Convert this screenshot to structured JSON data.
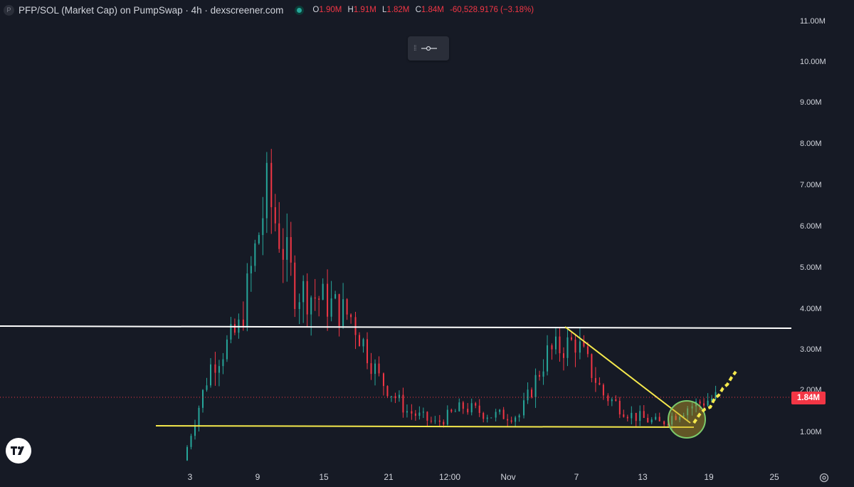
{
  "header": {
    "symbol_title": "PFP/SOL (Market Cap) on PumpSwap · 4h · dexscreener.com",
    "logo_letter": "P",
    "ohlc": {
      "open_key": "O",
      "open": "1.90M",
      "high_key": "H",
      "high": "1.91M",
      "low_key": "L",
      "low": "1.82M",
      "close_key": "C",
      "close": "1.84M",
      "change": "-60,528.9176 (−3.18%)"
    }
  },
  "price_axis": {
    "labels": [
      "11.00M",
      "10.00M",
      "9.00M",
      "8.00M",
      "7.00M",
      "6.00M",
      "5.00M",
      "4.00M",
      "3.00M",
      "2.00M",
      "1.00M"
    ],
    "current_price": "1.84M"
  },
  "time_axis": {
    "labels": [
      "3",
      "9",
      "15",
      "21",
      "12:00",
      "Nov",
      "7",
      "13",
      "19",
      "25"
    ]
  },
  "colors": {
    "background": "#161a25",
    "up": "#26a69a",
    "down": "#f23645",
    "support_line": "#f5e94c",
    "resistance_line": "#ffffff",
    "circle": "#7cc96a"
  },
  "icons": {
    "drag_handle": "drag-handle-icon",
    "drawing_tool": "horizontal-ray-icon",
    "tv_logo": "tradingview-logo-icon",
    "settings": "settings-gear-icon"
  },
  "chart_data": {
    "type": "candlestick",
    "interval": "4h",
    "ylim": [
      0,
      11000000
    ],
    "key_levels": {
      "resistance": 3550000,
      "support": 1130000
    },
    "last_candle": {
      "open": 1900000,
      "high": 1910000,
      "low": 1820000,
      "close": 1840000
    },
    "approx_price_path_millions": [
      {
        "date": "3",
        "value": 0.3
      },
      {
        "date": "4",
        "value": 2.6
      },
      {
        "date": "6",
        "value": 3.5
      },
      {
        "date": "7",
        "value": 6.8
      },
      {
        "date": "8",
        "value": 4.5
      },
      {
        "date": "9",
        "value": 4.2
      },
      {
        "date": "12",
        "value": 3.8
      },
      {
        "date": "15",
        "value": 2.3
      },
      {
        "date": "18",
        "value": 1.5
      },
      {
        "date": "21",
        "value": 1.2
      },
      {
        "date": "24",
        "value": 1.6
      },
      {
        "date": "12:00",
        "value": 1.4
      },
      {
        "date": "Nov",
        "value": 1.4
      },
      {
        "date": "4",
        "value": 2.9
      },
      {
        "date": "6",
        "value": 3.2
      },
      {
        "date": "9",
        "value": 1.9
      },
      {
        "date": "13",
        "value": 1.4
      },
      {
        "date": "17",
        "value": 1.2
      },
      {
        "date": "19",
        "value": 1.6
      },
      {
        "date": "20",
        "value": 1.84
      }
    ]
  }
}
